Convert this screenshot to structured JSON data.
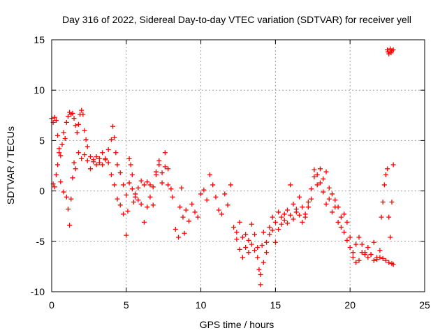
{
  "chart_data": {
    "type": "scatter",
    "title": "Day 316 of 2022, Sidereal Day-to-day VTEC variation (SDTVAR) for receiver yell",
    "xlabel": "GPS time / hours",
    "ylabel": "SDTVAR / TECUs",
    "xlim": [
      0,
      25
    ],
    "ylim": [
      -10,
      15
    ],
    "x_ticks": [
      "0",
      "5",
      "10",
      "15",
      "20",
      "25"
    ],
    "y_ticks": [
      "-10",
      "-5",
      "0",
      "5",
      "10",
      "15"
    ],
    "grid": true,
    "marker": "+",
    "color": "#ff0000",
    "series": [
      {
        "name": "SDTVAR",
        "points": [
          [
            0.0,
            7.2
          ],
          [
            0.1,
            6.8
          ],
          [
            0.2,
            7.3
          ],
          [
            0.3,
            7.0
          ],
          [
            0.4,
            5.5
          ],
          [
            0.5,
            4.2
          ],
          [
            0.6,
            3.5
          ],
          [
            0.7,
            4.6
          ],
          [
            0.8,
            5.8
          ],
          [
            0.9,
            5.2
          ],
          [
            1.0,
            6.8
          ],
          [
            1.1,
            7.4
          ],
          [
            1.2,
            7.8
          ],
          [
            1.3,
            7.6
          ],
          [
            1.4,
            7.7
          ],
          [
            1.5,
            7.2
          ],
          [
            1.6,
            6.5
          ],
          [
            1.7,
            5.8
          ],
          [
            1.8,
            6.6
          ],
          [
            1.9,
            7.6
          ],
          [
            2.0,
            8.0
          ],
          [
            2.1,
            7.6
          ],
          [
            2.2,
            6.0
          ],
          [
            2.3,
            5.1
          ],
          [
            2.4,
            4.4
          ],
          [
            2.6,
            3.4
          ],
          [
            2.8,
            2.9
          ],
          [
            3.0,
            2.6
          ],
          [
            3.2,
            3.2
          ],
          [
            3.4,
            3.8
          ],
          [
            3.6,
            3.2
          ],
          [
            3.8,
            4.1
          ],
          [
            4.0,
            5.1
          ],
          [
            4.1,
            6.4
          ],
          [
            4.2,
            5.3
          ],
          [
            4.3,
            3.8
          ],
          [
            4.4,
            2.6
          ],
          [
            4.6,
            1.8
          ],
          [
            4.8,
            0.6
          ],
          [
            5.0,
            -0.4
          ],
          [
            5.2,
            0.8
          ],
          [
            5.4,
            1.6
          ],
          [
            5.6,
            -0.3
          ],
          [
            5.8,
            -0.9
          ],
          [
            6.0,
            -1.3
          ],
          [
            6.2,
            0.6
          ],
          [
            6.4,
            0.9
          ],
          [
            6.6,
            -0.6
          ],
          [
            6.8,
            -1.4
          ],
          [
            7.0,
            1.6
          ],
          [
            7.2,
            2.6
          ],
          [
            7.4,
            1.8
          ],
          [
            7.6,
            3.8
          ],
          [
            7.8,
            2.2
          ],
          [
            8.0,
            0.2
          ],
          [
            0.1,
            0.7
          ],
          [
            0.2,
            0.4
          ],
          [
            0.3,
            1.6
          ],
          [
            0.4,
            2.6
          ],
          [
            0.5,
            3.8
          ],
          [
            0.6,
            0.9
          ],
          [
            0.8,
            -0.1
          ],
          [
            1.0,
            -0.6
          ],
          [
            1.1,
            -1.8
          ],
          [
            1.2,
            -3.4
          ],
          [
            1.3,
            -0.8
          ],
          [
            1.4,
            1.3
          ],
          [
            1.5,
            2.8
          ],
          [
            1.6,
            2.2
          ],
          [
            1.8,
            3.8
          ],
          [
            2.0,
            3.2
          ],
          [
            2.2,
            3.6
          ],
          [
            2.4,
            3.0
          ],
          [
            2.6,
            2.2
          ],
          [
            2.8,
            3.1
          ],
          [
            3.0,
            3.4
          ],
          [
            3.2,
            2.8
          ],
          [
            3.4,
            2.6
          ],
          [
            3.6,
            3.1
          ],
          [
            3.8,
            2.8
          ],
          [
            4.0,
            1.6
          ],
          [
            4.2,
            0.6
          ],
          [
            4.4,
            -0.8
          ],
          [
            4.6,
            -1.4
          ],
          [
            4.8,
            -2.3
          ],
          [
            5.0,
            -4.4
          ],
          [
            5.1,
            -2.0
          ],
          [
            5.2,
            3.2
          ],
          [
            5.3,
            2.6
          ],
          [
            5.4,
            0.2
          ],
          [
            5.5,
            -1.1
          ],
          [
            5.6,
            -0.6
          ],
          [
            5.8,
            0.3
          ],
          [
            6.0,
            1.0
          ],
          [
            6.2,
            -3.1
          ],
          [
            6.4,
            -1.6
          ],
          [
            6.6,
            0.6
          ],
          [
            6.8,
            0.4
          ],
          [
            7.0,
            1.9
          ],
          [
            7.2,
            3.0
          ],
          [
            7.4,
            0.8
          ],
          [
            7.6,
            2.4
          ],
          [
            7.8,
            0.6
          ],
          [
            8.1,
            -0.6
          ],
          [
            8.3,
            -3.8
          ],
          [
            8.5,
            -4.6
          ],
          [
            8.6,
            -1.6
          ],
          [
            8.7,
            0.3
          ],
          [
            8.8,
            -2.6
          ],
          [
            8.9,
            -4.2
          ],
          [
            9.0,
            -1.9
          ],
          [
            9.2,
            -3.0
          ],
          [
            9.4,
            -1.3
          ],
          [
            9.6,
            -2.1
          ],
          [
            9.8,
            -2.6
          ],
          [
            10.0,
            -0.3
          ],
          [
            10.2,
            0.1
          ],
          [
            10.4,
            -0.9
          ],
          [
            10.6,
            1.6
          ],
          [
            10.8,
            0.6
          ],
          [
            11.0,
            -0.6
          ],
          [
            11.2,
            -1.9
          ],
          [
            11.4,
            -2.3
          ],
          [
            11.6,
            -0.3
          ],
          [
            11.8,
            -1.4
          ],
          [
            12.0,
            0.6
          ],
          [
            12.2,
            -3.6
          ],
          [
            12.4,
            -4.8
          ],
          [
            12.6,
            -5.8
          ],
          [
            12.8,
            -6.6
          ],
          [
            13.0,
            -4.3
          ],
          [
            13.2,
            -4.9
          ],
          [
            13.4,
            -3.3
          ],
          [
            13.6,
            -5.9
          ],
          [
            13.8,
            -6.6
          ],
          [
            14.0,
            -8.3
          ],
          [
            14.1,
            -5.4
          ],
          [
            14.2,
            -4.1
          ],
          [
            14.4,
            -6.1
          ],
          [
            14.6,
            -3.6
          ],
          [
            14.8,
            -2.6
          ],
          [
            15.0,
            -3.1
          ],
          [
            15.2,
            -2.1
          ],
          [
            15.4,
            -3.3
          ],
          [
            15.6,
            -2.3
          ],
          [
            15.8,
            -1.9
          ],
          [
            16.0,
            0.6
          ],
          [
            16.2,
            -1.3
          ],
          [
            16.4,
            -2.1
          ],
          [
            16.6,
            -0.6
          ],
          [
            16.8,
            -1.6
          ],
          [
            17.0,
            -2.6
          ],
          [
            17.2,
            -1.1
          ],
          [
            17.4,
            0.2
          ],
          [
            17.6,
            1.4
          ],
          [
            17.8,
            0.6
          ],
          [
            18.0,
            0.8
          ],
          [
            18.2,
            -0.1
          ],
          [
            18.4,
            -1.3
          ],
          [
            18.6,
            -0.8
          ],
          [
            18.8,
            -2.1
          ],
          [
            19.0,
            -1.6
          ],
          [
            19.2,
            -3.1
          ],
          [
            19.4,
            -3.6
          ],
          [
            19.6,
            -4.1
          ],
          [
            19.8,
            -4.9
          ],
          [
            20.0,
            -5.6
          ],
          [
            20.2,
            -6.1
          ],
          [
            20.4,
            -5.3
          ],
          [
            20.6,
            -4.6
          ],
          [
            20.8,
            -5.3
          ],
          [
            21.0,
            -6.1
          ],
          [
            21.2,
            -5.6
          ],
          [
            21.4,
            -6.3
          ],
          [
            21.6,
            -5.1
          ],
          [
            21.8,
            -6.6
          ],
          [
            22.0,
            -5.9
          ],
          [
            22.1,
            -2.6
          ],
          [
            22.2,
            -1.1
          ],
          [
            22.3,
            0.6
          ],
          [
            22.4,
            1.6
          ],
          [
            22.5,
            2.2
          ],
          [
            22.6,
            -2.6
          ],
          [
            22.7,
            -4.6
          ],
          [
            22.8,
            -1.1
          ],
          [
            22.9,
            2.6
          ],
          [
            17.6,
            2.1
          ],
          [
            17.8,
            1.6
          ],
          [
            18.0,
            2.2
          ],
          [
            18.2,
            1.2
          ],
          [
            18.4,
            1.9
          ],
          [
            18.6,
            0.3
          ],
          [
            18.8,
            -0.3
          ],
          [
            19.0,
            -0.9
          ],
          [
            19.2,
            -1.6
          ],
          [
            19.4,
            -2.6
          ],
          [
            19.6,
            -2.3
          ],
          [
            19.8,
            -3.1
          ],
          [
            20.0,
            -4.6
          ],
          [
            20.2,
            -6.6
          ],
          [
            20.4,
            -7.1
          ],
          [
            20.6,
            -6.9
          ],
          [
            20.8,
            -6.1
          ],
          [
            21.0,
            -6.3
          ],
          [
            21.2,
            -6.6
          ],
          [
            21.4,
            -6.3
          ],
          [
            21.6,
            -6.9
          ],
          [
            21.8,
            -6.8
          ],
          [
            22.0,
            -6.6
          ],
          [
            22.2,
            -6.7
          ],
          [
            22.4,
            -6.9
          ],
          [
            22.6,
            -7.1
          ],
          [
            22.8,
            -7.2
          ],
          [
            22.9,
            -7.3
          ],
          [
            12.4,
            -4.1
          ],
          [
            12.6,
            -3.1
          ],
          [
            12.8,
            -4.6
          ],
          [
            13.0,
            -5.6
          ],
          [
            13.2,
            -6.1
          ],
          [
            13.4,
            -5.3
          ],
          [
            13.6,
            -4.3
          ],
          [
            13.8,
            -5.6
          ],
          [
            14.2,
            -7.1
          ],
          [
            14.4,
            -5.1
          ],
          [
            14.6,
            -4.3
          ],
          [
            14.8,
            -3.9
          ],
          [
            15.0,
            -5.1
          ],
          [
            15.2,
            -3.8
          ],
          [
            15.4,
            -2.6
          ],
          [
            15.6,
            -2.9
          ],
          [
            15.8,
            -3.2
          ],
          [
            16.0,
            -2.4
          ],
          [
            16.2,
            -2.8
          ],
          [
            16.4,
            -1.8
          ],
          [
            16.6,
            -2.4
          ],
          [
            16.8,
            -3.1
          ],
          [
            17.0,
            -2.3
          ],
          [
            17.2,
            -1.6
          ],
          [
            17.4,
            -0.8
          ],
          [
            14.0,
            -9.3
          ],
          [
            13.9,
            -7.8
          ],
          [
            22.5,
            14.0
          ],
          [
            22.6,
            13.6
          ],
          [
            22.7,
            14.1
          ],
          [
            22.8,
            13.9
          ],
          [
            22.9,
            14.0
          ],
          [
            22.55,
            13.8
          ],
          [
            22.75,
            13.7
          ]
        ]
      }
    ]
  }
}
